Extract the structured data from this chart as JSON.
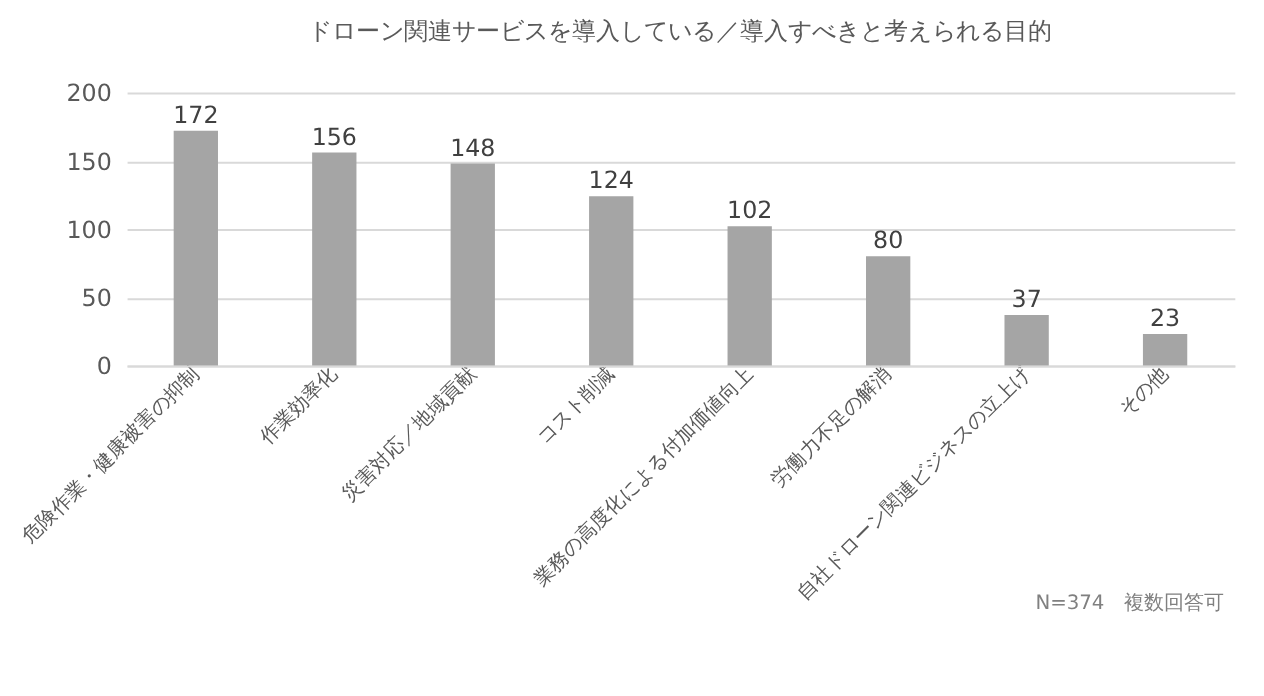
{
  "chart_data": {
    "type": "bar",
    "title": "ドローン関連サービスを導入している／導入すべきと考えられる目的",
    "categories": [
      "危険作業・健康被害の抑制",
      "作業効率化",
      "災害対応／地域貢献",
      "コスト削減",
      "業務の高度化による付加価値向上",
      "労働力不足の解消",
      "自社ドローン関連ビジネスの立上げ",
      "その他"
    ],
    "values": [
      172,
      156,
      148,
      124,
      102,
      80,
      37,
      23
    ],
    "color": "#a5a5a5",
    "ylim": [
      0,
      200
    ],
    "yticks": [
      0,
      50,
      100,
      150,
      200
    ],
    "grid": "y",
    "data_labels": true,
    "annotations": [
      "N=374　複数回答可"
    ]
  }
}
